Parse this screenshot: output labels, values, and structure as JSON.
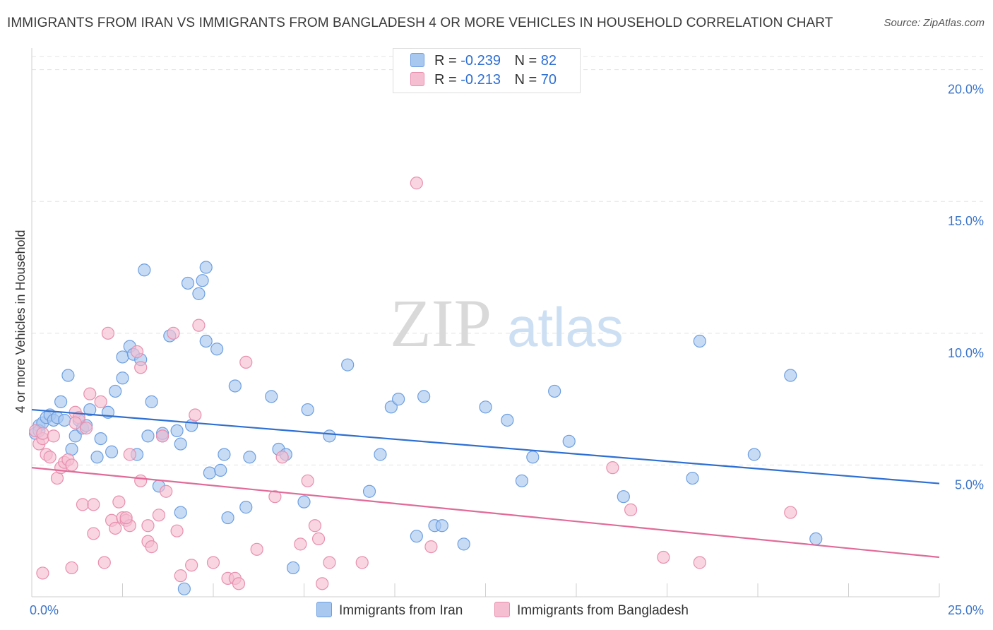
{
  "title": "IMMIGRANTS FROM IRAN VS IMMIGRANTS FROM BANGLADESH 4 OR MORE VEHICLES IN HOUSEHOLD CORRELATION CHART",
  "source": "Source: ZipAtlas.com",
  "watermark": {
    "zip": "ZIP",
    "atlas": "atlas"
  },
  "legend": {
    "r_label": "R =",
    "n_label": "N =",
    "series": [
      {
        "name": "Immigrants from Iran",
        "r": "-0.239",
        "n": "82",
        "fill": "#a9c8f0",
        "stroke": "#6d9fe0",
        "line": "#2e6fd1"
      },
      {
        "name": "Immigrants from Bangladesh",
        "r": "-0.213",
        "n": "70",
        "fill": "#f5bfd1",
        "stroke": "#e88fae",
        "line": "#e06b97"
      }
    ]
  },
  "chart_data": {
    "type": "scatter",
    "title": "IMMIGRANTS FROM IRAN VS IMMIGRANTS FROM BANGLADESH 4 OR MORE VEHICLES IN HOUSEHOLD CORRELATION CHART",
    "xlabel": "",
    "ylabel": "4 or more Vehicles in Household",
    "xlim": [
      0,
      25
    ],
    "ylim": [
      0,
      20.5
    ],
    "x_tick_labels": [
      "0.0%",
      "25.0%"
    ],
    "y_ticks": [
      5,
      10,
      15,
      20
    ],
    "y_tick_labels": [
      "5.0%",
      "10.0%",
      "15.0%",
      "20.0%"
    ],
    "grid": true,
    "series": [
      {
        "name": "Immigrants from Iran",
        "trend": {
          "x": [
            0,
            25
          ],
          "y": [
            7.1,
            4.3
          ]
        },
        "points": [
          [
            0.1,
            6.2
          ],
          [
            0.2,
            6.5
          ],
          [
            0.2,
            6.3
          ],
          [
            0.3,
            6.6
          ],
          [
            0.4,
            6.8
          ],
          [
            0.5,
            6.9
          ],
          [
            0.6,
            6.7
          ],
          [
            0.7,
            6.8
          ],
          [
            0.8,
            7.4
          ],
          [
            0.9,
            6.7
          ],
          [
            1.0,
            8.4
          ],
          [
            1.1,
            5.6
          ],
          [
            1.2,
            6.1
          ],
          [
            1.3,
            6.7
          ],
          [
            1.4,
            6.4
          ],
          [
            1.5,
            6.5
          ],
          [
            1.6,
            7.1
          ],
          [
            1.8,
            5.3
          ],
          [
            1.9,
            6.0
          ],
          [
            2.1,
            7.0
          ],
          [
            2.2,
            5.5
          ],
          [
            2.3,
            7.8
          ],
          [
            2.5,
            8.3
          ],
          [
            2.5,
            9.1
          ],
          [
            2.7,
            9.5
          ],
          [
            2.8,
            9.2
          ],
          [
            2.9,
            5.4
          ],
          [
            3.0,
            9.0
          ],
          [
            3.1,
            12.4
          ],
          [
            3.2,
            6.1
          ],
          [
            3.3,
            7.4
          ],
          [
            3.5,
            4.2
          ],
          [
            3.6,
            6.1
          ],
          [
            3.6,
            6.2
          ],
          [
            3.8,
            9.9
          ],
          [
            4.0,
            6.3
          ],
          [
            4.1,
            3.2
          ],
          [
            4.1,
            5.8
          ],
          [
            4.3,
            11.9
          ],
          [
            4.4,
            6.5
          ],
          [
            4.6,
            11.5
          ],
          [
            4.7,
            12.0
          ],
          [
            4.8,
            9.7
          ],
          [
            4.8,
            12.5
          ],
          [
            4.9,
            4.7
          ],
          [
            5.1,
            9.4
          ],
          [
            5.2,
            4.8
          ],
          [
            5.3,
            5.4
          ],
          [
            5.4,
            3.0
          ],
          [
            5.6,
            8.0
          ],
          [
            5.9,
            3.4
          ],
          [
            6.0,
            5.3
          ],
          [
            6.6,
            7.6
          ],
          [
            6.8,
            5.6
          ],
          [
            7.0,
            5.4
          ],
          [
            7.2,
            1.1
          ],
          [
            7.5,
            3.6
          ],
          [
            7.6,
            7.1
          ],
          [
            8.2,
            6.1
          ],
          [
            8.7,
            8.8
          ],
          [
            9.3,
            4.0
          ],
          [
            9.6,
            5.4
          ],
          [
            9.9,
            7.2
          ],
          [
            10.1,
            7.5
          ],
          [
            10.6,
            2.3
          ],
          [
            10.8,
            7.6
          ],
          [
            11.1,
            2.7
          ],
          [
            11.3,
            2.7
          ],
          [
            11.9,
            2.0
          ],
          [
            12.5,
            7.2
          ],
          [
            13.1,
            6.7
          ],
          [
            13.5,
            4.4
          ],
          [
            13.8,
            5.3
          ],
          [
            14.4,
            7.8
          ],
          [
            14.8,
            5.9
          ],
          [
            16.3,
            3.8
          ],
          [
            18.2,
            4.5
          ],
          [
            18.4,
            9.7
          ],
          [
            19.9,
            5.4
          ],
          [
            20.9,
            8.4
          ],
          [
            21.6,
            2.2
          ],
          [
            4.2,
            0.3
          ]
        ]
      },
      {
        "name": "Immigrants from Bangladesh",
        "trend": {
          "x": [
            0,
            25
          ],
          "y": [
            4.9,
            1.5
          ]
        },
        "points": [
          [
            0.1,
            6.3
          ],
          [
            0.2,
            5.8
          ],
          [
            0.3,
            6.0
          ],
          [
            0.3,
            6.2
          ],
          [
            0.4,
            5.4
          ],
          [
            0.5,
            5.3
          ],
          [
            0.6,
            6.1
          ],
          [
            0.7,
            4.5
          ],
          [
            0.8,
            4.9
          ],
          [
            0.9,
            5.1
          ],
          [
            1.0,
            5.2
          ],
          [
            1.1,
            5.0
          ],
          [
            1.1,
            1.1
          ],
          [
            1.2,
            7.0
          ],
          [
            1.3,
            6.8
          ],
          [
            1.4,
            3.5
          ],
          [
            1.5,
            6.4
          ],
          [
            1.6,
            7.7
          ],
          [
            1.7,
            3.5
          ],
          [
            1.7,
            2.4
          ],
          [
            1.9,
            7.4
          ],
          [
            2.0,
            1.3
          ],
          [
            2.1,
            10.0
          ],
          [
            2.2,
            2.9
          ],
          [
            2.3,
            2.6
          ],
          [
            2.4,
            3.6
          ],
          [
            2.5,
            3.0
          ],
          [
            2.6,
            2.9
          ],
          [
            2.7,
            2.7
          ],
          [
            2.7,
            5.4
          ],
          [
            2.9,
            9.3
          ],
          [
            3.0,
            8.7
          ],
          [
            3.0,
            4.4
          ],
          [
            3.2,
            2.7
          ],
          [
            3.2,
            2.1
          ],
          [
            3.3,
            1.9
          ],
          [
            3.5,
            3.1
          ],
          [
            3.6,
            6.1
          ],
          [
            3.7,
            4.0
          ],
          [
            3.9,
            10.0
          ],
          [
            4.0,
            2.5
          ],
          [
            4.1,
            0.8
          ],
          [
            4.4,
            1.2
          ],
          [
            4.6,
            10.3
          ],
          [
            4.5,
            6.9
          ],
          [
            5.0,
            1.3
          ],
          [
            5.4,
            0.7
          ],
          [
            5.6,
            0.7
          ],
          [
            5.7,
            0.5
          ],
          [
            5.9,
            8.9
          ],
          [
            6.2,
            1.8
          ],
          [
            6.7,
            3.8
          ],
          [
            6.9,
            5.3
          ],
          [
            7.4,
            2.0
          ],
          [
            7.6,
            4.4
          ],
          [
            7.8,
            2.7
          ],
          [
            7.9,
            2.2
          ],
          [
            8.0,
            0.5
          ],
          [
            8.2,
            1.3
          ],
          [
            9.1,
            1.3
          ],
          [
            10.6,
            15.7
          ],
          [
            11.0,
            1.9
          ],
          [
            16.0,
            4.9
          ],
          [
            16.5,
            3.3
          ],
          [
            17.4,
            1.5
          ],
          [
            18.4,
            1.3
          ],
          [
            20.9,
            3.2
          ],
          [
            0.3,
            0.9
          ],
          [
            1.2,
            6.6
          ],
          [
            2.6,
            3.0
          ]
        ]
      }
    ]
  }
}
